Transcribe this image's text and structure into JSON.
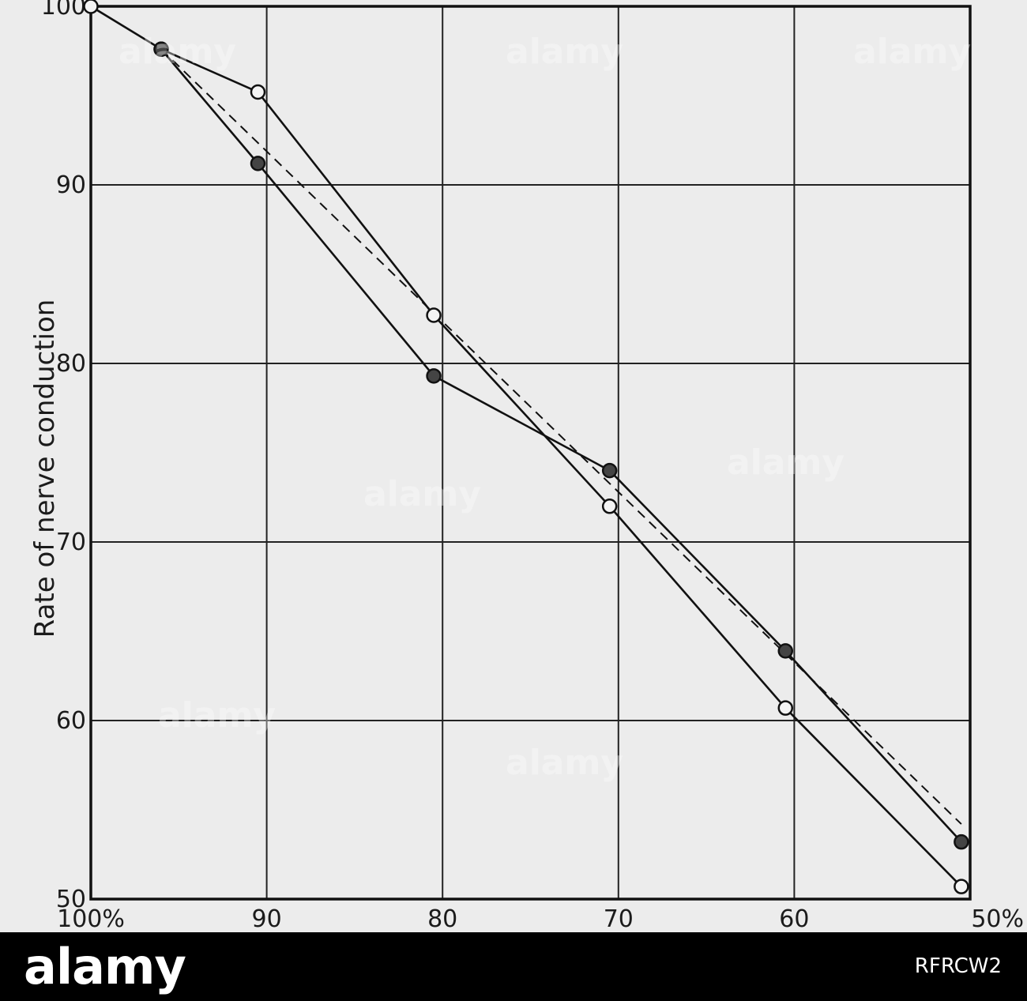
{
  "chart_data": {
    "type": "line",
    "ylabel": "Rate of nerve conduction",
    "xlabel": "",
    "x_tick_labels": [
      "100%",
      "90",
      "80",
      "70",
      "60",
      "50%"
    ],
    "x_ticks": [
      100,
      90,
      80,
      70,
      60,
      50
    ],
    "y_tick_labels": [
      "100",
      "90",
      "80",
      "70",
      "60",
      "50"
    ],
    "y_ticks": [
      100,
      90,
      80,
      70,
      60,
      50
    ],
    "xlim": [
      100,
      50
    ],
    "ylim": [
      50,
      100
    ],
    "grid": true,
    "series": [
      {
        "marker": "open-circle",
        "line": "solid",
        "x": [
          100,
          96,
          90.5,
          80.5,
          70.5,
          60.5,
          50.5
        ],
        "y": [
          100,
          97.6,
          95.2,
          82.7,
          72.0,
          60.7,
          50.7
        ]
      },
      {
        "marker": "filled-circle",
        "line": "solid",
        "x": [
          96,
          90.5,
          80.5,
          70.5,
          60.5,
          50.5
        ],
        "y": [
          97.6,
          91.2,
          79.3,
          74.0,
          63.9,
          53.2
        ]
      },
      {
        "marker": "none",
        "line": "dashed",
        "x": [
          96,
          50.5
        ],
        "y": [
          97.6,
          54.2
        ]
      }
    ]
  },
  "watermark": {
    "logo": "alamy",
    "image_id": "RFRCW2",
    "overlay_text": "alamy"
  }
}
